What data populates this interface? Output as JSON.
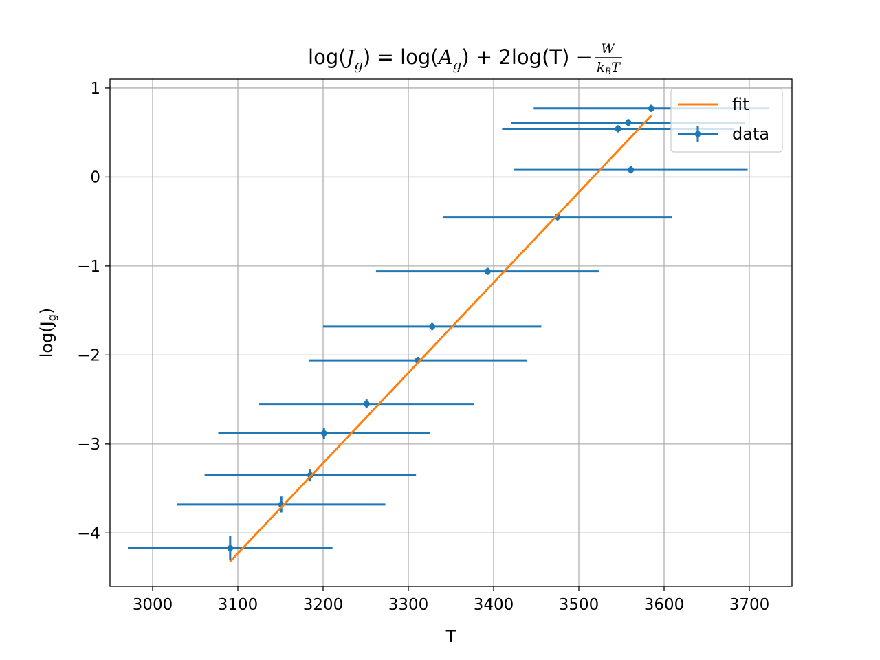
{
  "chart_data": {
    "type": "scatter",
    "title": {
      "prefix": "log(",
      "J": "J",
      "g1": "g",
      "mid1": ") = log(",
      "A": "A",
      "g2": "g",
      "mid2": ") + 2log(T) − ",
      "frac_num": "W",
      "frac_den_k": "k",
      "frac_den_B": "B",
      "frac_den_T": "T"
    },
    "xlabel": "T",
    "ylabel": {
      "main": "log(J",
      "sub": "g",
      "close": ")"
    },
    "xlim": [
      2950,
      3750
    ],
    "ylim": [
      -4.6,
      1.1
    ],
    "xticks": [
      3000,
      3100,
      3200,
      3300,
      3400,
      3500,
      3600,
      3700
    ],
    "xtick_labels": [
      "3000",
      "3100",
      "3200",
      "3300",
      "3400",
      "3500",
      "3600",
      "3700"
    ],
    "yticks": [
      1,
      0,
      -1,
      -2,
      -3,
      -4
    ],
    "ytick_labels": [
      "1",
      "0",
      "−1",
      "−2",
      "−3",
      "−4"
    ],
    "grid": true,
    "legend": {
      "position": "top-right",
      "entries": [
        {
          "label": "fit",
          "color": "#ff7f0e"
        },
        {
          "label": "data",
          "color": "#1f77b4"
        }
      ]
    },
    "series": [
      {
        "name": "data",
        "kind": "errorbar",
        "color": "#1f77b4",
        "points": [
          {
            "x": 3091,
            "y": -4.17,
            "xerr": 120,
            "yerr": 0.14
          },
          {
            "x": 3151,
            "y": -3.68,
            "xerr": 122,
            "yerr": 0.09
          },
          {
            "x": 3185,
            "y": -3.35,
            "xerr": 124,
            "yerr": 0.07
          },
          {
            "x": 3201,
            "y": -2.88,
            "xerr": 124,
            "yerr": 0.06
          },
          {
            "x": 3251,
            "y": -2.55,
            "xerr": 126,
            "yerr": 0.05
          },
          {
            "x": 3311,
            "y": -2.06,
            "xerr": 128,
            "yerr": 0.04
          },
          {
            "x": 3328,
            "y": -1.68,
            "xerr": 128,
            "yerr": 0.04
          },
          {
            "x": 3393,
            "y": -1.06,
            "xerr": 131,
            "yerr": 0.04
          },
          {
            "x": 3475,
            "y": -0.45,
            "xerr": 134,
            "yerr": 0.04
          },
          {
            "x": 3561,
            "y": 0.08,
            "xerr": 137,
            "yerr": 0.04
          },
          {
            "x": 3546,
            "y": 0.54,
            "xerr": 136,
            "yerr": 0.04
          },
          {
            "x": 3558,
            "y": 0.61,
            "xerr": 137,
            "yerr": 0.04
          },
          {
            "x": 3585,
            "y": 0.77,
            "xerr": 138,
            "yerr": 0.04
          }
        ]
      },
      {
        "name": "fit",
        "kind": "line",
        "color": "#ff7f0e",
        "x": [
          3091,
          3585
        ],
        "y": [
          -4.32,
          0.69
        ]
      }
    ]
  }
}
